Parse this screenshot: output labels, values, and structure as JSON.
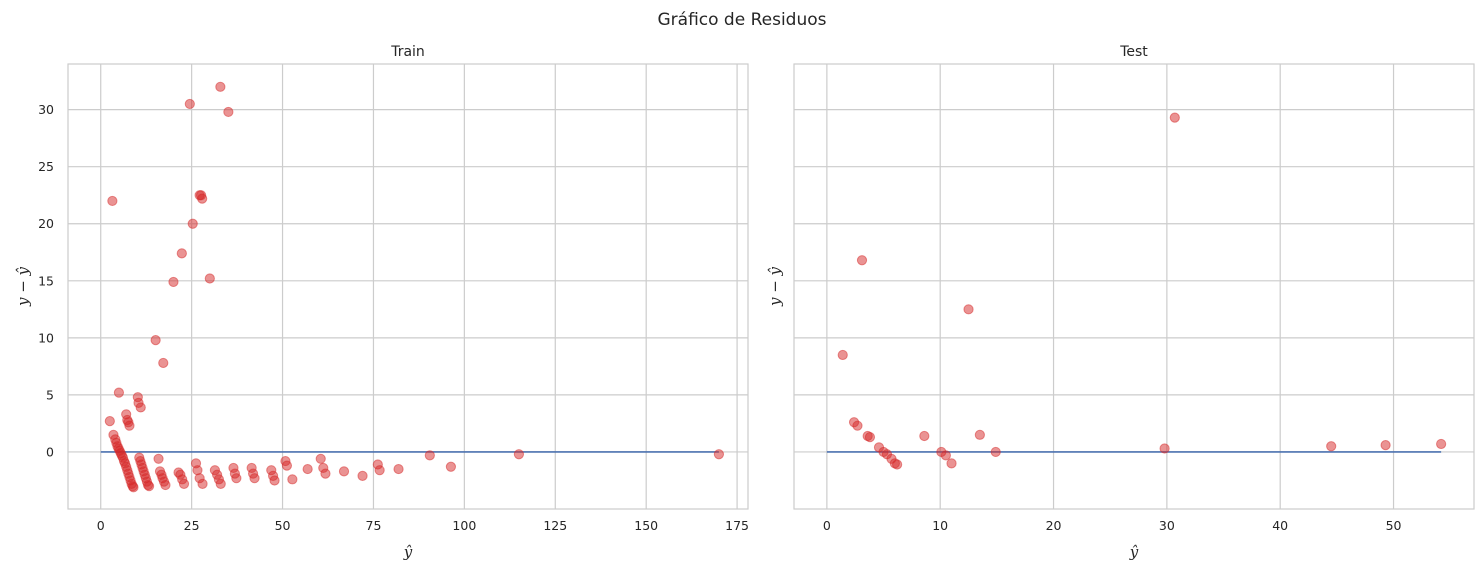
{
  "figure": {
    "title": "Gráfico de Residuos"
  },
  "colors": {
    "points": "#d62728",
    "zero_line": "#4c72b0",
    "grid": "#cccccc"
  },
  "chart_data": [
    {
      "type": "scatter",
      "title": "Train",
      "xlabel": "ŷ",
      "ylabel": "y − ŷ",
      "xlim": [
        -9,
        178
      ],
      "ylim": [
        -5,
        34
      ],
      "xticks": [
        0,
        25,
        50,
        75,
        100,
        125,
        150,
        175
      ],
      "yticks": [
        0,
        5,
        10,
        15,
        20,
        25,
        30
      ],
      "zero_line": {
        "x": [
          0,
          170
        ],
        "y": 0
      },
      "points": [
        [
          2.5,
          2.7
        ],
        [
          3.2,
          22.0
        ],
        [
          3.5,
          1.5
        ],
        [
          4.0,
          1.1
        ],
        [
          4.3,
          0.8
        ],
        [
          4.6,
          0.5
        ],
        [
          4.9,
          0.3
        ],
        [
          5.0,
          5.2
        ],
        [
          5.2,
          0.1
        ],
        [
          5.5,
          -0.1
        ],
        [
          5.8,
          -0.3
        ],
        [
          6.1,
          -0.5
        ],
        [
          6.4,
          -0.8
        ],
        [
          6.7,
          -1.0
        ],
        [
          7.0,
          3.3
        ],
        [
          7.0,
          -1.3
        ],
        [
          7.3,
          2.8
        ],
        [
          7.3,
          -1.6
        ],
        [
          7.6,
          2.6
        ],
        [
          7.6,
          -1.9
        ],
        [
          7.9,
          2.3
        ],
        [
          7.9,
          -2.2
        ],
        [
          8.2,
          -2.5
        ],
        [
          8.5,
          -2.8
        ],
        [
          8.8,
          -3.0
        ],
        [
          9.0,
          -3.1
        ],
        [
          10.2,
          4.8
        ],
        [
          10.4,
          4.3
        ],
        [
          10.6,
          -0.5
        ],
        [
          10.9,
          -0.8
        ],
        [
          11.0,
          3.9
        ],
        [
          11.2,
          -1.1
        ],
        [
          11.5,
          -1.4
        ],
        [
          11.8,
          -1.7
        ],
        [
          12.1,
          -2.0
        ],
        [
          12.4,
          -2.3
        ],
        [
          12.7,
          -2.6
        ],
        [
          13.0,
          -2.9
        ],
        [
          13.3,
          -3.0
        ],
        [
          15.1,
          9.8
        ],
        [
          15.9,
          -0.6
        ],
        [
          16.3,
          -1.7
        ],
        [
          16.7,
          -2.0
        ],
        [
          17.0,
          -2.3
        ],
        [
          17.2,
          7.8
        ],
        [
          17.4,
          -2.6
        ],
        [
          17.8,
          -2.9
        ],
        [
          20.0,
          14.9
        ],
        [
          21.4,
          -1.8
        ],
        [
          21.9,
          -2.0
        ],
        [
          22.3,
          17.4
        ],
        [
          22.4,
          -2.4
        ],
        [
          22.9,
          -2.8
        ],
        [
          24.5,
          30.5
        ],
        [
          25.3,
          20.0
        ],
        [
          26.2,
          -1.0
        ],
        [
          26.6,
          -1.6
        ],
        [
          27.2,
          22.5
        ],
        [
          27.2,
          -2.3
        ],
        [
          27.6,
          22.5
        ],
        [
          27.9,
          22.2
        ],
        [
          28.0,
          -2.8
        ],
        [
          30.0,
          15.2
        ],
        [
          31.4,
          -1.6
        ],
        [
          32.0,
          -2.0
        ],
        [
          32.5,
          -2.4
        ],
        [
          32.9,
          32.0
        ],
        [
          33.0,
          -2.8
        ],
        [
          35.1,
          29.8
        ],
        [
          36.5,
          -1.4
        ],
        [
          36.9,
          -1.9
        ],
        [
          37.3,
          -2.3
        ],
        [
          41.5,
          -1.4
        ],
        [
          41.9,
          -1.9
        ],
        [
          42.3,
          -2.3
        ],
        [
          46.9,
          -1.6
        ],
        [
          47.4,
          -2.1
        ],
        [
          47.8,
          -2.5
        ],
        [
          50.8,
          -0.8
        ],
        [
          51.2,
          -1.2
        ],
        [
          52.7,
          -2.4
        ],
        [
          56.9,
          -1.5
        ],
        [
          60.5,
          -0.6
        ],
        [
          61.2,
          -1.4
        ],
        [
          61.8,
          -1.9
        ],
        [
          66.9,
          -1.7
        ],
        [
          72.0,
          -2.1
        ],
        [
          76.2,
          -1.1
        ],
        [
          76.7,
          -1.6
        ],
        [
          81.9,
          -1.5
        ],
        [
          90.5,
          -0.3
        ],
        [
          96.3,
          -1.3
        ],
        [
          115.0,
          -0.2
        ],
        [
          170.0,
          -0.2
        ]
      ]
    },
    {
      "type": "scatter",
      "title": "Test",
      "xlabel": "ŷ",
      "ylabel": "y − ŷ",
      "xlim": [
        -2.9,
        57.1
      ],
      "ylim": [
        -5,
        34
      ],
      "xticks": [
        0,
        10,
        20,
        30,
        40,
        50
      ],
      "yticks": [
        0,
        5,
        10,
        15,
        20,
        25,
        30
      ],
      "zero_line": {
        "x": [
          0,
          54.2
        ],
        "y": 0
      },
      "points": [
        [
          1.4,
          8.5
        ],
        [
          2.4,
          2.6
        ],
        [
          2.7,
          2.3
        ],
        [
          3.1,
          16.8
        ],
        [
          3.6,
          1.4
        ],
        [
          3.8,
          1.3
        ],
        [
          4.6,
          0.4
        ],
        [
          5.0,
          0.0
        ],
        [
          5.3,
          -0.2
        ],
        [
          5.7,
          -0.6
        ],
        [
          6.0,
          -1.0
        ],
        [
          6.2,
          -1.1
        ],
        [
          8.6,
          1.4
        ],
        [
          10.1,
          0.0
        ],
        [
          10.5,
          -0.3
        ],
        [
          11.0,
          -1.0
        ],
        [
          12.5,
          12.5
        ],
        [
          13.5,
          1.5
        ],
        [
          14.9,
          0.0
        ],
        [
          29.8,
          0.3
        ],
        [
          30.7,
          29.3
        ],
        [
          44.5,
          0.5
        ],
        [
          49.3,
          0.6
        ],
        [
          54.2,
          0.7
        ]
      ]
    }
  ]
}
